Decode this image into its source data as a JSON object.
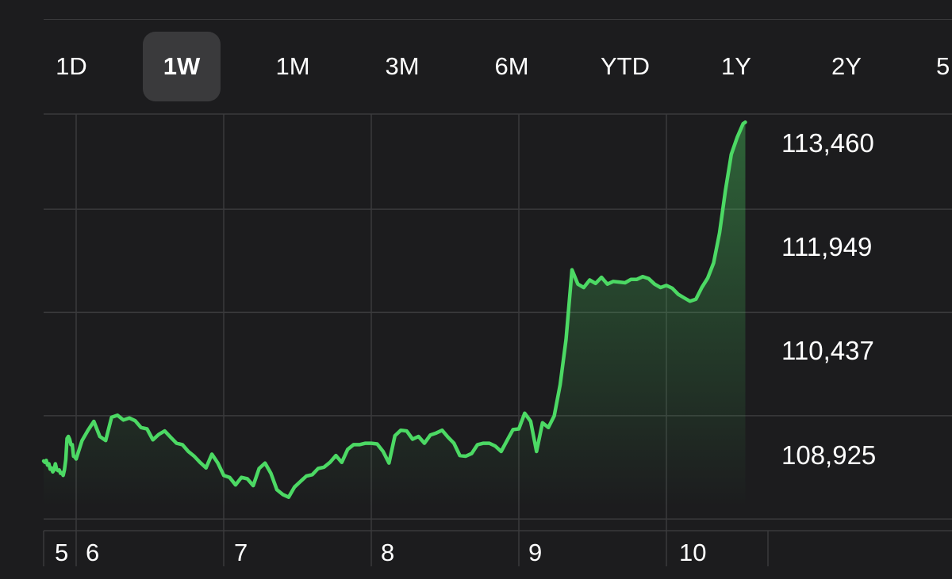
{
  "range_tabs": {
    "items": [
      {
        "label": "1D",
        "selected": false
      },
      {
        "label": "1W",
        "selected": true
      },
      {
        "label": "1M",
        "selected": false
      },
      {
        "label": "3M",
        "selected": false
      },
      {
        "label": "6M",
        "selected": false
      },
      {
        "label": "YTD",
        "selected": false
      },
      {
        "label": "1Y",
        "selected": false
      },
      {
        "label": "2Y",
        "selected": false
      },
      {
        "label": "5",
        "selected": false
      }
    ]
  },
  "colors": {
    "line": "#4cd964",
    "background": "#1c1c1e",
    "grid": "#3a3a3c",
    "selected_tab": "#3a3a3c",
    "text": "#ffffff"
  },
  "chart_data": {
    "type": "line",
    "title": "",
    "xlabel": "",
    "ylabel": "",
    "x_ticks": [
      "5",
      "6",
      "7",
      "8",
      "9",
      "10"
    ],
    "y_ticks": [
      "113,460",
      "111,949",
      "110,437",
      "108,925"
    ],
    "y_tick_values": [
      113460,
      111949,
      110437,
      108925
    ],
    "ylim": [
      107640,
      113740
    ],
    "xlim": [
      5.0,
      10.535
    ],
    "grid": true,
    "fill_under_line": true,
    "series": [
      {
        "name": "",
        "points": [
          [
            5.0,
            108660
          ],
          [
            5.04,
            108640
          ],
          [
            5.08,
            108670
          ],
          [
            5.12,
            108600
          ],
          [
            5.16,
            108620
          ],
          [
            5.2,
            108540
          ],
          [
            5.24,
            108560
          ],
          [
            5.28,
            108500
          ],
          [
            5.32,
            108530
          ],
          [
            5.36,
            108620
          ],
          [
            5.4,
            108540
          ],
          [
            5.44,
            108520
          ],
          [
            5.48,
            108530
          ],
          [
            5.52,
            108480
          ],
          [
            5.56,
            108490
          ],
          [
            5.6,
            108450
          ],
          [
            5.64,
            108530
          ],
          [
            5.68,
            108680
          ],
          [
            5.72,
            108990
          ],
          [
            5.76,
            109020
          ],
          [
            5.8,
            108980
          ],
          [
            5.84,
            108900
          ],
          [
            5.88,
            108900
          ],
          [
            5.92,
            108730
          ],
          [
            5.96,
            108720
          ],
          [
            6.0,
            108690
          ],
          [
            6.04,
            108960
          ],
          [
            6.08,
            109110
          ],
          [
            6.12,
            109240
          ],
          [
            6.16,
            109020
          ],
          [
            6.2,
            108960
          ],
          [
            6.24,
            109300
          ],
          [
            6.28,
            109330
          ],
          [
            6.32,
            109260
          ],
          [
            6.36,
            109290
          ],
          [
            6.4,
            109250
          ],
          [
            6.44,
            109150
          ],
          [
            6.48,
            109130
          ],
          [
            6.52,
            108970
          ],
          [
            6.56,
            109050
          ],
          [
            6.6,
            109100
          ],
          [
            6.64,
            109010
          ],
          [
            6.68,
            108920
          ],
          [
            6.72,
            108900
          ],
          [
            6.76,
            108800
          ],
          [
            6.8,
            108730
          ],
          [
            6.84,
            108640
          ],
          [
            6.88,
            108560
          ],
          [
            6.92,
            108760
          ],
          [
            6.96,
            108630
          ],
          [
            7.0,
            108450
          ],
          [
            7.04,
            108420
          ],
          [
            7.08,
            108310
          ],
          [
            7.12,
            108420
          ],
          [
            7.16,
            108400
          ],
          [
            7.2,
            108300
          ],
          [
            7.24,
            108550
          ],
          [
            7.28,
            108630
          ],
          [
            7.32,
            108480
          ],
          [
            7.36,
            108240
          ],
          [
            7.4,
            108170
          ],
          [
            7.44,
            108130
          ],
          [
            7.48,
            108280
          ],
          [
            7.52,
            108360
          ],
          [
            7.56,
            108440
          ],
          [
            7.6,
            108460
          ],
          [
            7.64,
            108550
          ],
          [
            7.68,
            108570
          ],
          [
            7.72,
            108640
          ],
          [
            7.76,
            108740
          ],
          [
            7.8,
            108640
          ],
          [
            7.84,
            108830
          ],
          [
            7.88,
            108900
          ],
          [
            7.92,
            108900
          ],
          [
            7.96,
            108920
          ],
          [
            8.0,
            108920
          ],
          [
            8.04,
            108910
          ],
          [
            8.08,
            108800
          ],
          [
            8.12,
            108630
          ],
          [
            8.16,
            109030
          ],
          [
            8.2,
            109110
          ],
          [
            8.24,
            109100
          ],
          [
            8.28,
            108980
          ],
          [
            8.32,
            109020
          ],
          [
            8.36,
            108920
          ],
          [
            8.4,
            109040
          ],
          [
            8.44,
            109070
          ],
          [
            8.48,
            109110
          ],
          [
            8.52,
            109010
          ],
          [
            8.56,
            108920
          ],
          [
            8.6,
            108740
          ],
          [
            8.64,
            108730
          ],
          [
            8.68,
            108770
          ],
          [
            8.72,
            108900
          ],
          [
            8.76,
            108920
          ],
          [
            8.8,
            108920
          ],
          [
            8.84,
            108880
          ],
          [
            8.88,
            108800
          ],
          [
            8.92,
            108960
          ],
          [
            8.96,
            109120
          ],
          [
            9.0,
            109130
          ],
          [
            9.04,
            109360
          ],
          [
            9.08,
            109240
          ],
          [
            9.12,
            108800
          ],
          [
            9.16,
            109220
          ],
          [
            9.2,
            109150
          ],
          [
            9.24,
            109320
          ],
          [
            9.28,
            109780
          ],
          [
            9.32,
            110440
          ],
          [
            9.36,
            111460
          ],
          [
            9.4,
            111250
          ],
          [
            9.44,
            111200
          ],
          [
            9.48,
            111310
          ],
          [
            9.52,
            111260
          ],
          [
            9.56,
            111350
          ],
          [
            9.6,
            111250
          ],
          [
            9.64,
            111290
          ],
          [
            9.68,
            111280
          ],
          [
            9.72,
            111270
          ],
          [
            9.76,
            111320
          ],
          [
            9.8,
            111320
          ],
          [
            9.84,
            111360
          ],
          [
            9.88,
            111330
          ],
          [
            9.92,
            111250
          ],
          [
            9.96,
            111200
          ],
          [
            10.0,
            111230
          ],
          [
            10.04,
            111190
          ],
          [
            10.08,
            111100
          ],
          [
            10.12,
            111050
          ],
          [
            10.16,
            111000
          ],
          [
            10.2,
            111030
          ],
          [
            10.24,
            111200
          ],
          [
            10.28,
            111340
          ],
          [
            10.32,
            111560
          ],
          [
            10.36,
            112000
          ],
          [
            10.4,
            112620
          ],
          [
            10.44,
            113150
          ],
          [
            10.48,
            113400
          ],
          [
            10.52,
            113600
          ],
          [
            10.535,
            113620
          ]
        ]
      }
    ]
  }
}
